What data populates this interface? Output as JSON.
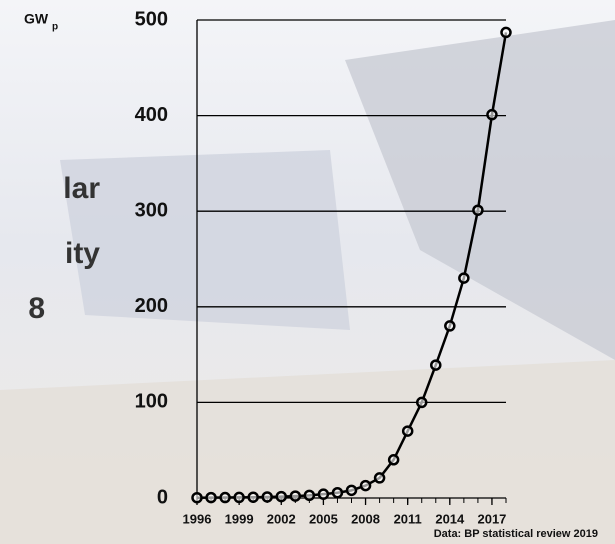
{
  "chart_data": {
    "type": "line",
    "title_fragments": [
      "lar",
      "ity",
      "8"
    ],
    "y_unit": "GW",
    "y_unit_sub": "p",
    "source": "Data: BP statistical review 2019",
    "x": [
      1996,
      1997,
      1998,
      1999,
      2000,
      2001,
      2002,
      2003,
      2004,
      2005,
      2006,
      2007,
      2008,
      2009,
      2010,
      2011,
      2012,
      2013,
      2014,
      2015,
      2016,
      2017,
      2018
    ],
    "series": [
      {
        "name": "Solar capacity",
        "color": "#000000",
        "values": [
          0.3,
          0.4,
          0.5,
          0.6,
          0.8,
          1.1,
          1.5,
          2.0,
          2.8,
          4.0,
          5.5,
          8,
          13,
          21,
          40,
          70,
          100,
          139,
          180,
          230,
          301,
          401,
          487
        ]
      }
    ],
    "xlim": [
      1996,
      2018
    ],
    "xticks": [
      1996,
      1999,
      2002,
      2005,
      2008,
      2011,
      2014,
      2017
    ],
    "ylim": [
      0,
      500
    ],
    "yticks": [
      0,
      100,
      200,
      300,
      400,
      500
    ],
    "grid": true
  }
}
